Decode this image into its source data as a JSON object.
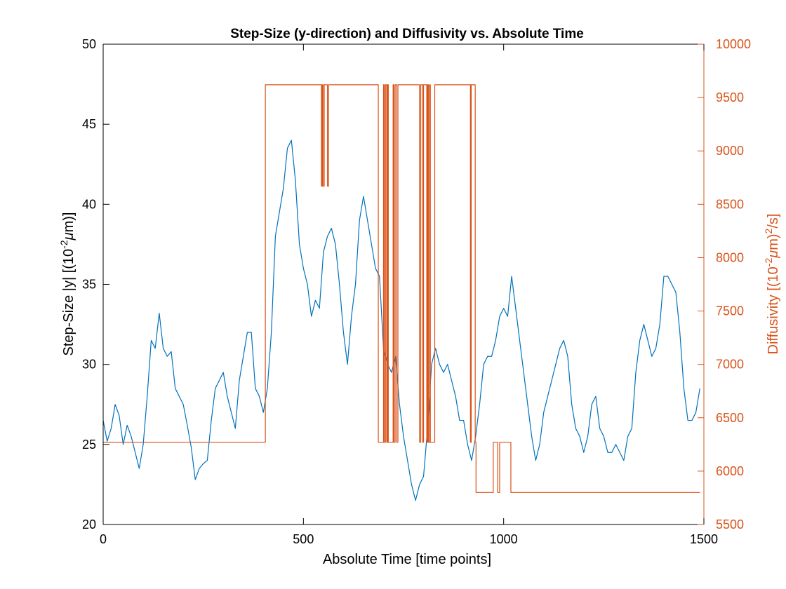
{
  "chart_data": {
    "type": "line",
    "title": "Step-Size (y-direction) and Diffusivity vs. Absolute Time",
    "xlabel": "Absolute Time [time points]",
    "ylabel_left_parts": [
      "Step-Size |y| [(10",
      "-2",
      "μ",
      "m)]"
    ],
    "ylabel_right_parts": [
      "Diffusivity [(10",
      "-2",
      "μ",
      "m)",
      "2",
      "/s]"
    ],
    "xlim": [
      0,
      1500
    ],
    "ylim_left": [
      20,
      50
    ],
    "ylim_right": [
      5500,
      10000
    ],
    "x_ticks": [
      0,
      500,
      1000,
      1500
    ],
    "y_left_ticks": [
      20,
      25,
      30,
      35,
      40,
      45,
      50
    ],
    "y_right_ticks": [
      5500,
      6000,
      6500,
      7000,
      7500,
      8000,
      8500,
      9000,
      9500,
      10000
    ],
    "colors": {
      "step_size": "#0072BD",
      "diffusivity": "#D95319",
      "axis": "#000000"
    },
    "series": [
      {
        "axis": "left",
        "color": "#0072BD",
        "x": [
          0,
          10,
          20,
          30,
          40,
          50,
          60,
          70,
          80,
          90,
          100,
          110,
          120,
          130,
          140,
          150,
          160,
          170,
          180,
          190,
          200,
          210,
          220,
          230,
          240,
          250,
          260,
          270,
          280,
          290,
          300,
          310,
          320,
          330,
          340,
          350,
          360,
          370,
          380,
          390,
          400,
          410,
          420,
          430,
          440,
          450,
          460,
          470,
          480,
          490,
          500,
          510,
          520,
          530,
          540,
          550,
          560,
          570,
          580,
          590,
          600,
          610,
          620,
          630,
          640,
          650,
          660,
          670,
          680,
          690,
          700,
          710,
          720,
          730,
          740,
          750,
          760,
          770,
          780,
          790,
          800,
          810,
          820,
          830,
          840,
          850,
          860,
          870,
          880,
          890,
          900,
          910,
          920,
          930,
          940,
          950,
          960,
          970,
          980,
          990,
          1000,
          1010,
          1020,
          1030,
          1040,
          1050,
          1060,
          1070,
          1080,
          1090,
          1100,
          1110,
          1120,
          1130,
          1140,
          1150,
          1160,
          1170,
          1180,
          1190,
          1200,
          1210,
          1220,
          1230,
          1240,
          1250,
          1260,
          1270,
          1280,
          1290,
          1300,
          1310,
          1320,
          1330,
          1340,
          1350,
          1360,
          1370,
          1380,
          1390,
          1400,
          1410,
          1420,
          1430,
          1440,
          1450,
          1460,
          1470,
          1480,
          1490
        ],
        "values": [
          26.5,
          25.2,
          26.0,
          27.5,
          26.8,
          25.0,
          26.2,
          25.5,
          24.5,
          23.5,
          25.0,
          28.0,
          31.5,
          31.0,
          33.2,
          31.0,
          30.5,
          30.8,
          28.5,
          28.0,
          27.5,
          26.2,
          24.8,
          22.8,
          23.5,
          23.8,
          24.0,
          26.5,
          28.5,
          29.0,
          29.5,
          28.0,
          27.0,
          26.0,
          29.0,
          30.5,
          32.0,
          32.0,
          28.5,
          28.0,
          27.0,
          28.5,
          32.0,
          38.0,
          39.5,
          41.0,
          43.5,
          44.0,
          41.5,
          37.5,
          36.0,
          35.0,
          33.0,
          34.0,
          33.5,
          37.0,
          38.0,
          38.5,
          37.5,
          35.0,
          32.0,
          30.0,
          33.0,
          35.0,
          39.0,
          40.5,
          39.0,
          37.5,
          36.0,
          35.5,
          31.0,
          30.0,
          29.5,
          30.5,
          27.5,
          25.5,
          24.0,
          22.5,
          21.5,
          22.5,
          23.0,
          26.0,
          30.0,
          31.0,
          30.0,
          29.5,
          30.0,
          29.0,
          28.0,
          26.5,
          26.5,
          25.0,
          24.0,
          25.5,
          27.5,
          30.0,
          30.5,
          30.5,
          31.5,
          33.0,
          33.5,
          33.0,
          35.5,
          33.5,
          31.5,
          29.5,
          27.5,
          25.5,
          24.0,
          25.0,
          27.0,
          28.0,
          29.0,
          30.0,
          31.0,
          31.5,
          30.5,
          27.5,
          26.0,
          25.5,
          24.5,
          25.5,
          27.5,
          28.0,
          26.0,
          25.5,
          24.5,
          24.5,
          25.0,
          24.5,
          24.0,
          25.5,
          26.0,
          29.5,
          31.5,
          32.5,
          31.5,
          30.5,
          31.0,
          32.5,
          35.5,
          35.5,
          35.0,
          34.5,
          32.0,
          28.5,
          26.5,
          26.5,
          27.0,
          28.5
        ]
      },
      {
        "axis": "right",
        "color": "#D95319",
        "x": [
          0,
          405,
          405,
          545,
          545,
          547,
          547,
          549,
          549,
          552,
          552,
          560,
          560,
          563,
          563,
          687,
          687,
          700,
          700,
          702,
          702,
          705,
          705,
          708,
          708,
          710,
          710,
          712,
          712,
          724,
          724,
          726,
          726,
          729,
          729,
          733,
          733,
          736,
          736,
          790,
          790,
          793,
          793,
          798,
          798,
          800,
          800,
          808,
          808,
          810,
          810,
          812,
          812,
          815,
          815,
          817,
          817,
          828,
          828,
          917,
          917,
          919,
          919,
          929,
          929,
          931,
          931,
          974,
          974,
          985,
          985,
          990,
          990,
          1018,
          1018,
          1020,
          1020,
          1490
        ],
        "values": [
          6270,
          6270,
          9620,
          9620,
          8670,
          8670,
          9620,
          9620,
          8670,
          8670,
          9620,
          9620,
          8670,
          8670,
          9620,
          9620,
          6270,
          6270,
          9620,
          9620,
          6270,
          6270,
          9620,
          9620,
          6270,
          6270,
          9620,
          9620,
          6270,
          6270,
          9620,
          9620,
          6270,
          6270,
          9620,
          9620,
          6270,
          6270,
          9620,
          9620,
          6270,
          6270,
          9620,
          9620,
          6270,
          6270,
          9620,
          9620,
          6270,
          6270,
          9620,
          9620,
          6270,
          6270,
          9620,
          9620,
          6270,
          6270,
          9620,
          9620,
          6270,
          6270,
          9620,
          9620,
          6270,
          6270,
          5800,
          5800,
          6270,
          6270,
          5800,
          5800,
          6270,
          6270,
          5800,
          5800,
          5800,
          5800
        ]
      }
    ]
  }
}
